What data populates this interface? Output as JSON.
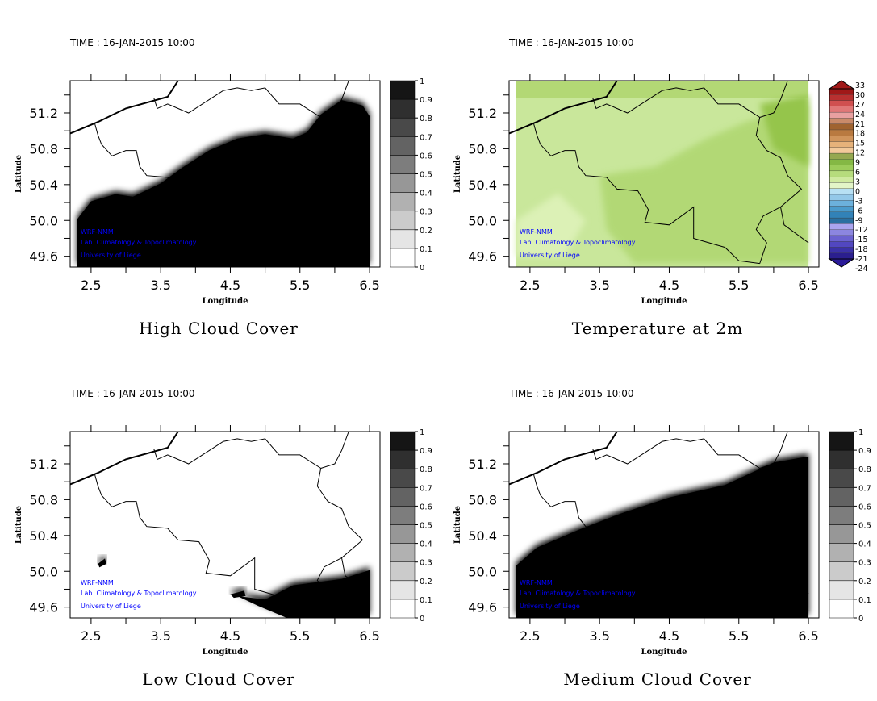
{
  "panels": [
    {
      "id": "high-cloud",
      "time": "TIME : 16-JAN-2015 10:00",
      "title": "High Cloud Cover",
      "xlabel": "Longitude",
      "ylabel": "Latitude",
      "type": "cloud",
      "cloud": "high"
    },
    {
      "id": "temperature",
      "time": "TIME : 16-JAN-2015 10:00",
      "title": "Temperature at 2m",
      "xlabel": "Longitude",
      "ylabel": "Latitude",
      "type": "temp"
    },
    {
      "id": "low-cloud",
      "time": "TIME : 16-JAN-2015 10:00",
      "title": "Low Cloud Cover",
      "xlabel": "Longitude",
      "ylabel": "Latitude",
      "type": "cloud",
      "cloud": "low"
    },
    {
      "id": "medium-cloud",
      "time": "TIME : 16-JAN-2015 10:00",
      "title": "Medium Cloud Cover",
      "xlabel": "Longitude",
      "ylabel": "Latitude",
      "type": "cloud",
      "cloud": "medium"
    }
  ],
  "xticks": [
    "2.5",
    "3.5",
    "4.5",
    "5.5",
    "6.5"
  ],
  "yticks": [
    "51.2",
    "50.8",
    "50.4",
    "50.0",
    "49.6"
  ],
  "lon_range": [
    2.2,
    6.65
  ],
  "lat_range": [
    49.48,
    51.56
  ],
  "watermark": [
    "WRF-NMM",
    "Lab. Climatology & Topoclimatology",
    "University of Liege"
  ],
  "cloud_colorbar": [
    "0",
    "0.1",
    "0.2",
    "0.3",
    "0.4",
    "0.5",
    "0.6",
    "0.7",
    "0.8",
    "0.9",
    "1"
  ],
  "temp_colorbar": [
    "-24",
    "-21",
    "-18",
    "-15",
    "-12",
    "-9",
    "-6",
    "-3",
    "0",
    "3",
    "6",
    "9",
    "12",
    "15",
    "18",
    "21",
    "24",
    "27",
    "30",
    "33"
  ],
  "colors": {
    "watermark": "#0000ff",
    "temp_base": "#c9e79b",
    "temp_dark": "#a9d366"
  }
}
